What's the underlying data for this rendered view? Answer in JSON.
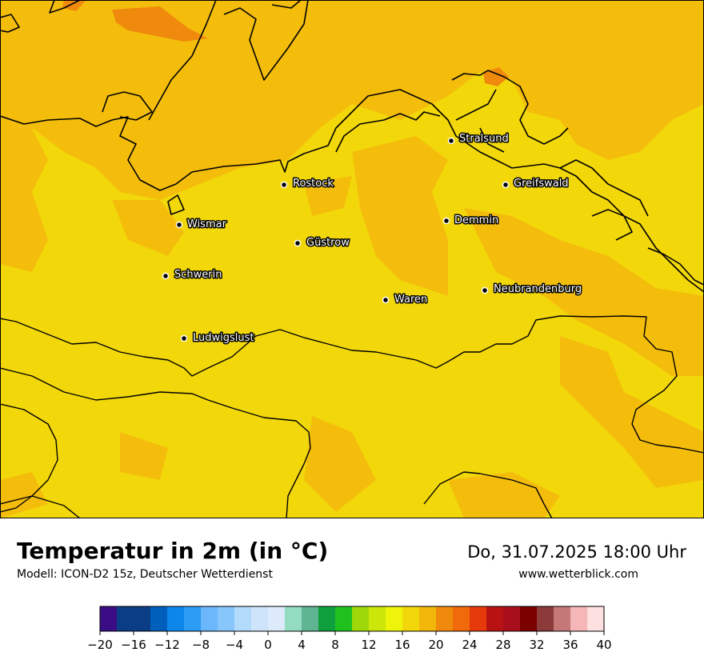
{
  "title": "Temperatur in 2m (in °C)",
  "model": "Modell: ICON-D2 15z, Deutscher Wetterdienst",
  "datetime": "Do, 31.07.2025 18:00 Uhr",
  "website": "www.wetterblick.com",
  "cities": [
    "Stralsund",
    "Rostock",
    "Greifswald",
    "Wismar",
    "Demmin",
    "Güstrow",
    "Schwerin",
    "Neubrandenburg",
    "Waren",
    "Ludwigslust"
  ],
  "colors": {
    "field_warm": "#f4c20d",
    "field_hot": "#f08a0c",
    "field_mild": "#f2d80a",
    "coast": "#000000"
  },
  "colorbar": {
    "ticks": [
      "−20",
      "−16",
      "−12",
      "−8",
      "−4",
      "0",
      "4",
      "8",
      "12",
      "16",
      "20",
      "24",
      "28",
      "32",
      "36",
      "40"
    ],
    "colors": [
      "#3a0d86",
      "#0b3d86",
      "#0b3d86",
      "#005fba",
      "#0d86ea",
      "#2d9cf5",
      "#6bb7fb",
      "#86c6fb",
      "#b2dafb",
      "#cde4fb",
      "#dceafc",
      "#93dcc1",
      "#5fb492",
      "#0f9f3c",
      "#1ec11e",
      "#9ed80a",
      "#cce60a",
      "#eef50a",
      "#f2d80a",
      "#f2b70a",
      "#f08a0c",
      "#f06a0c",
      "#e63a0a",
      "#b81212",
      "#a80f1a",
      "#7a0000",
      "#8c3a3a",
      "#c47878",
      "#f4b6b6",
      "#fde0e0"
    ]
  }
}
